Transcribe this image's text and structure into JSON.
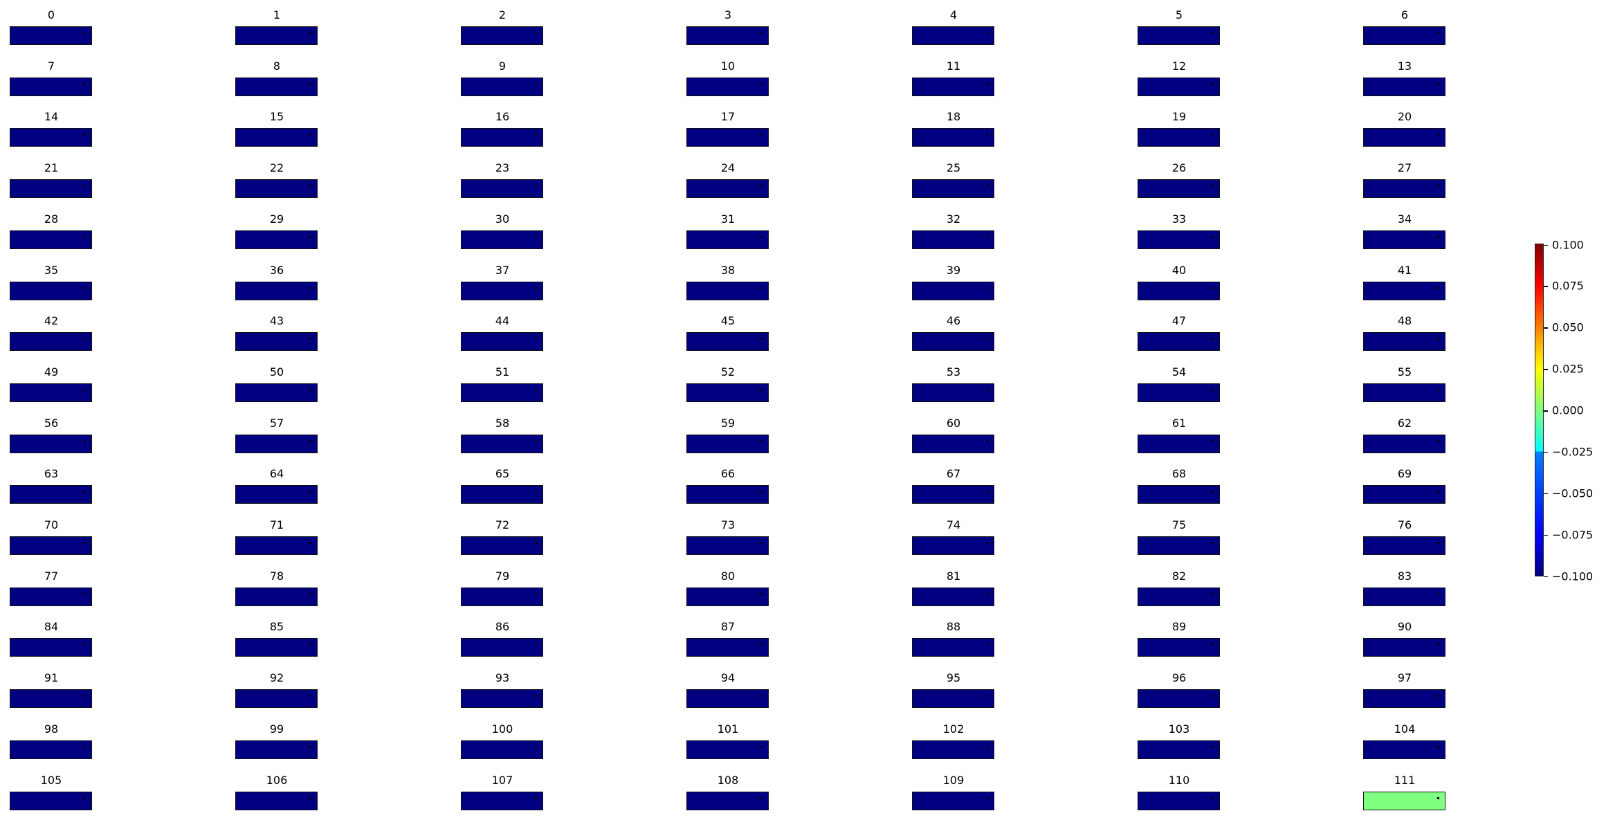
{
  "chart_data": {
    "type": "heatmap",
    "layout": "grid of 112 small panels, 7 columns x 16 rows",
    "panel_titles": [
      "0",
      "1",
      "2",
      "3",
      "4",
      "5",
      "6",
      "7",
      "8",
      "9",
      "10",
      "11",
      "12",
      "13",
      "14",
      "15",
      "16",
      "17",
      "18",
      "19",
      "20",
      "21",
      "22",
      "23",
      "24",
      "25",
      "26",
      "27",
      "28",
      "29",
      "30",
      "31",
      "32",
      "33",
      "34",
      "35",
      "36",
      "37",
      "38",
      "39",
      "40",
      "41",
      "42",
      "43",
      "44",
      "45",
      "46",
      "47",
      "48",
      "49",
      "50",
      "51",
      "52",
      "53",
      "54",
      "55",
      "56",
      "57",
      "58",
      "59",
      "60",
      "61",
      "62",
      "63",
      "64",
      "65",
      "66",
      "67",
      "68",
      "69",
      "70",
      "71",
      "72",
      "73",
      "74",
      "75",
      "76",
      "77",
      "78",
      "79",
      "80",
      "81",
      "82",
      "83",
      "84",
      "85",
      "86",
      "87",
      "88",
      "89",
      "90",
      "91",
      "92",
      "93",
      "94",
      "95",
      "96",
      "97",
      "98",
      "99",
      "100",
      "101",
      "102",
      "103",
      "104",
      "105",
      "106",
      "107",
      "108",
      "109",
      "110",
      "111"
    ],
    "values": [
      -0.1,
      -0.1,
      -0.1,
      -0.1,
      -0.1,
      -0.1,
      -0.1,
      -0.1,
      -0.1,
      -0.1,
      -0.1,
      -0.1,
      -0.1,
      -0.1,
      -0.1,
      -0.1,
      -0.1,
      -0.1,
      -0.1,
      -0.1,
      -0.1,
      -0.1,
      -0.1,
      -0.1,
      -0.1,
      -0.1,
      -0.1,
      -0.1,
      -0.1,
      -0.1,
      -0.1,
      -0.1,
      -0.1,
      -0.1,
      -0.1,
      -0.1,
      -0.1,
      -0.1,
      -0.1,
      -0.1,
      -0.1,
      -0.1,
      -0.1,
      -0.1,
      -0.1,
      -0.1,
      -0.1,
      -0.1,
      -0.1,
      -0.1,
      -0.1,
      -0.1,
      -0.1,
      -0.1,
      -0.1,
      -0.1,
      -0.1,
      -0.1,
      -0.1,
      -0.1,
      -0.1,
      -0.1,
      -0.1,
      -0.1,
      -0.1,
      -0.1,
      -0.1,
      -0.1,
      -0.1,
      -0.1,
      -0.1,
      -0.1,
      -0.1,
      -0.1,
      -0.1,
      -0.1,
      -0.1,
      -0.1,
      -0.1,
      -0.1,
      -0.1,
      -0.1,
      -0.1,
      -0.1,
      -0.1,
      -0.1,
      -0.1,
      -0.1,
      -0.1,
      -0.1,
      -0.1,
      -0.1,
      -0.1,
      -0.1,
      -0.1,
      -0.1,
      -0.1,
      -0.1,
      -0.1,
      -0.1,
      -0.1,
      -0.1,
      -0.1,
      -0.1,
      -0.1,
      -0.1,
      -0.1,
      -0.1,
      -0.1,
      -0.1,
      -0.1,
      0.0
    ],
    "colormap": "jet",
    "colorbar": {
      "range": [
        -0.1,
        0.1
      ],
      "ticks": [
        "0.100",
        "0.075",
        "0.050",
        "0.025",
        "0.000",
        "−0.025",
        "−0.050",
        "−0.075",
        "−0.100"
      ],
      "tick_values": [
        0.1,
        0.075,
        0.05,
        0.025,
        0,
        -0.025,
        -0.05,
        -0.075,
        -0.1
      ],
      "placement": "right"
    },
    "marker": "small black dot in upper-right of each panel"
  }
}
